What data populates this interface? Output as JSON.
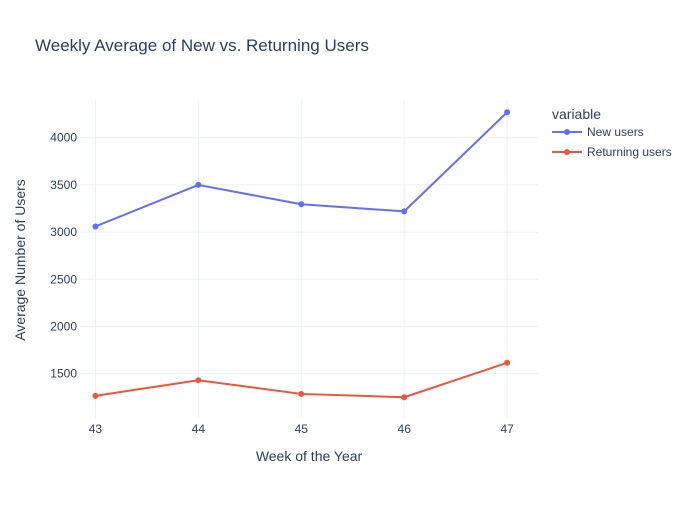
{
  "chart_data": {
    "type": "line",
    "title": "Weekly Average of New vs. Returning Users",
    "xlabel": "Week of the Year",
    "ylabel": "Average Number of Users",
    "x": [
      43,
      44,
      45,
      46,
      47
    ],
    "x_ticks": [
      "43",
      "44",
      "45",
      "46",
      "47"
    ],
    "y_ticks": [
      1500,
      2000,
      2500,
      3000,
      3500,
      4000
    ],
    "y_tick_labels": [
      "1500",
      "2000",
      "2500",
      "3000",
      "3500",
      "4000"
    ],
    "xlim": [
      42.85,
      47.3
    ],
    "ylim": [
      1030,
      4400
    ],
    "grid": true,
    "legend": {
      "title": "variable",
      "placement": "top-right"
    },
    "series": [
      {
        "name": "New users",
        "color": "#636efa",
        "values": [
          3060,
          3500,
          3295,
          3220,
          4270
        ]
      },
      {
        "name": "Returning users",
        "color": "#ef553b",
        "values": [
          1265,
          1430,
          1285,
          1250,
          1615
        ]
      }
    ]
  }
}
